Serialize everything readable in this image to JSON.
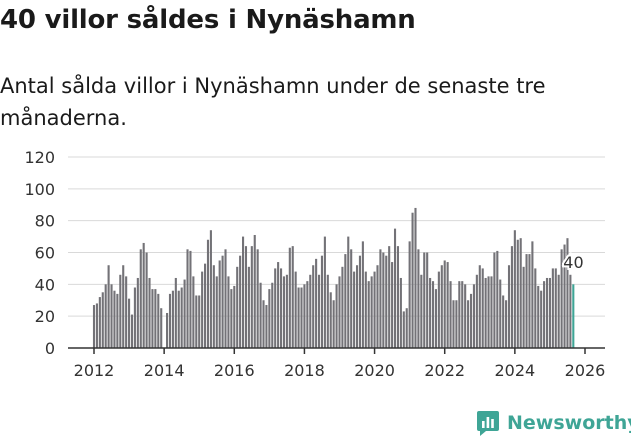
{
  "header": {
    "title": "40 villor såldes i Nynäshamn",
    "subtitle": "Antal sålda villor i Nynäshamn under de senaste tre månaderna."
  },
  "brand": {
    "name": "Newsworthy"
  },
  "colors": {
    "bar": "#737277",
    "highlight": "#3fa596",
    "grid": "#d9d9d9",
    "axis": "#333333"
  },
  "chart_data": {
    "type": "bar",
    "title": "40 villor såldes i Nynäshamn",
    "subtitle": "Antal sålda villor i Nynäshamn under de senaste tre månaderna.",
    "xlabel": "",
    "ylabel": "",
    "ylim": [
      0,
      120
    ],
    "yticks": [
      0,
      20,
      40,
      60,
      80,
      100,
      120
    ],
    "yticks_labels": [
      "0",
      "20",
      "40",
      "60",
      "80",
      "100",
      "120"
    ],
    "xlim": [
      2012,
      2026.2
    ],
    "xticks": [
      2012,
      2014,
      2016,
      2018,
      2020,
      2022,
      2024,
      2026
    ],
    "xticks_labels": [
      "2012",
      "2014",
      "2016",
      "2018",
      "2020",
      "2022",
      "2024",
      "2026"
    ],
    "grid": true,
    "start": {
      "year": 2012,
      "month": 1
    },
    "period": "monthly, rolling three-month total",
    "values": [
      27,
      28,
      32,
      35,
      40,
      52,
      40,
      36,
      34,
      46,
      52,
      45,
      31,
      21,
      38,
      44,
      62,
      66,
      60,
      44,
      37,
      37,
      34,
      25,
      0,
      22,
      34,
      36,
      44,
      36,
      38,
      43,
      62,
      61,
      45,
      33,
      33,
      48,
      53,
      68,
      74,
      52,
      45,
      55,
      58,
      62,
      45,
      37,
      39,
      51,
      58,
      70,
      64,
      51,
      64,
      71,
      62,
      41,
      30,
      27,
      37,
      41,
      50,
      54,
      50,
      45,
      46,
      63,
      64,
      48,
      38,
      38,
      40,
      42,
      46,
      52,
      56,
      46,
      58,
      70,
      46,
      35,
      30,
      40,
      45,
      51,
      59,
      70,
      62,
      48,
      52,
      58,
      67,
      48,
      42,
      45,
      48,
      52,
      62,
      60,
      58,
      64,
      54,
      75,
      64,
      44,
      23,
      25,
      67,
      85,
      88,
      62,
      46,
      60,
      60,
      44,
      42,
      37,
      48,
      52,
      55,
      54,
      42,
      30,
      30,
      42,
      42,
      40,
      30,
      34,
      40,
      46,
      52,
      50,
      44,
      45,
      45,
      60,
      61,
      43,
      33,
      30,
      52,
      64,
      74,
      68,
      69,
      51,
      59,
      59,
      67,
      50,
      39,
      36,
      42,
      44,
      44,
      50,
      50,
      46,
      62,
      65,
      69,
      46,
      40
    ],
    "highlight": {
      "label": "40",
      "value": 40,
      "index": 164
    }
  }
}
